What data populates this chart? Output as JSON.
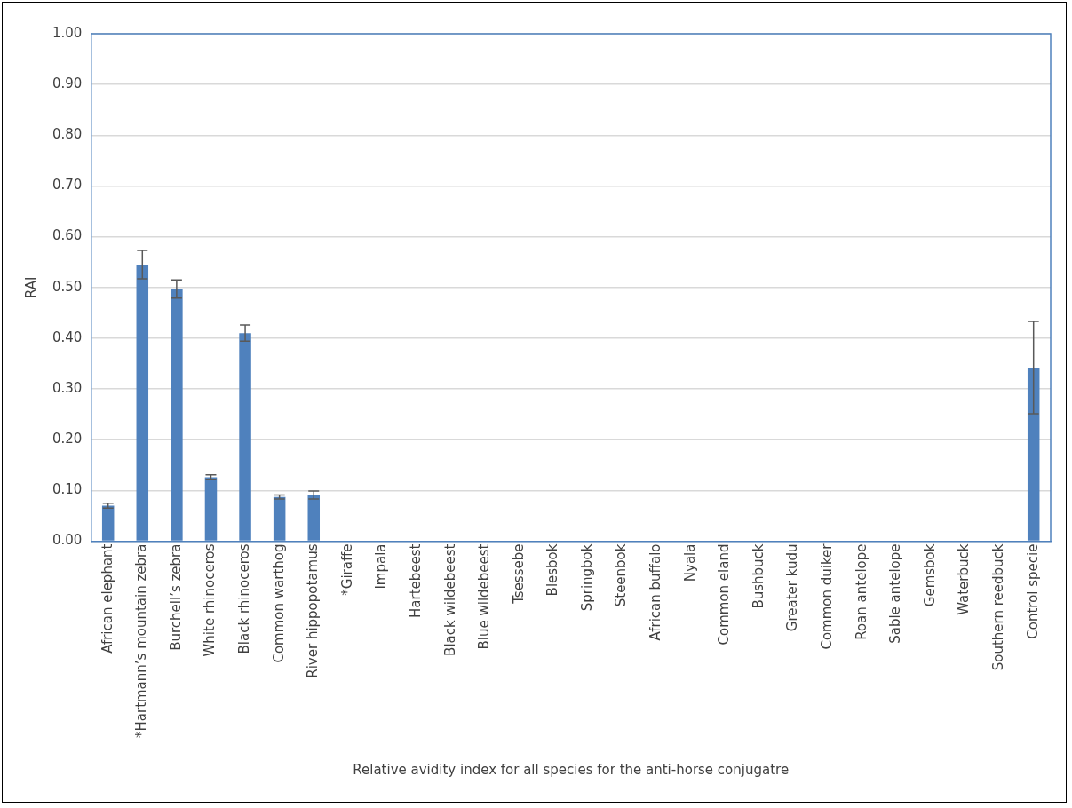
{
  "chart_data": {
    "type": "bar",
    "xlabel": "Relative avidity index for all species for the anti-horse conjugatre",
    "ylabel": "RAI",
    "categories": [
      "African elephant",
      "*Hartmann’s mountain zebra",
      "Burchell’s zebra",
      "White rhinoceros",
      "Black rhinoceros",
      "Common warthog",
      "River hippopotamus",
      "*Giraffe",
      "Impala",
      "Hartebeest",
      "Black wildebeest",
      "Blue wildebeest",
      "Tsessebe",
      "Blesbok",
      "Springbok",
      "Steenbok",
      "African buffalo",
      "Nyala",
      "Common eland",
      "Bushbuck",
      "Greater kudu",
      "Common duiker",
      "Roan antelope",
      "Sable antelope",
      "Gemsbok",
      "Waterbuck",
      "Southern reedbuck",
      "Control specie"
    ],
    "values": [
      0.07,
      0.545,
      0.497,
      0.126,
      0.41,
      0.087,
      0.091,
      0,
      0,
      0,
      0,
      0,
      0,
      0,
      0,
      0,
      0,
      0,
      0,
      0,
      0,
      0,
      0,
      0,
      0,
      0,
      0,
      0.342
    ],
    "errors": [
      0.005,
      0.028,
      0.018,
      0.005,
      0.016,
      0.004,
      0.008,
      null,
      null,
      null,
      null,
      null,
      null,
      null,
      null,
      null,
      null,
      null,
      null,
      null,
      null,
      null,
      null,
      null,
      null,
      null,
      null,
      0.091
    ],
    "color": "#4f81bd",
    "ylim": [
      0,
      1
    ],
    "yticks": [
      {
        "value": 0,
        "label": "0.00"
      },
      {
        "value": 0.1,
        "label": "0.10"
      },
      {
        "value": 0.2,
        "label": "0.20"
      },
      {
        "value": 0.3,
        "label": "0.30"
      },
      {
        "value": 0.4,
        "label": "0.40"
      },
      {
        "value": 0.5,
        "label": "0.50"
      },
      {
        "value": 0.6,
        "label": "0.60"
      },
      {
        "value": 0.7,
        "label": "0.70"
      },
      {
        "value": 0.8,
        "label": "0.80"
      },
      {
        "value": 0.9,
        "label": "0.90"
      },
      {
        "value": 1,
        "label": "1.00"
      }
    ],
    "grid": "y",
    "legend": false
  }
}
